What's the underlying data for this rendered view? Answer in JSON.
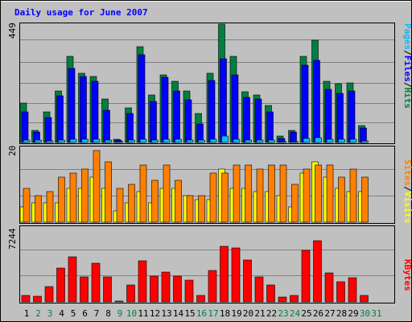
{
  "chart_data": {
    "type": "bar",
    "title": "Daily usage for June 2007",
    "days": [
      "1",
      "2",
      "3",
      "4",
      "5",
      "6",
      "7",
      "8",
      "9",
      "10",
      "11",
      "12",
      "13",
      "14",
      "15",
      "16",
      "17",
      "18",
      "19",
      "20",
      "21",
      "22",
      "23",
      "24",
      "25",
      "26",
      "27",
      "28",
      "29",
      "30",
      "31"
    ],
    "weekend_days": [
      "2",
      "3",
      "9",
      "10",
      "16",
      "17",
      "23",
      "24",
      "30",
      "31"
    ],
    "panels": [
      {
        "id": "hits",
        "max_label": "449",
        "ylim": [
          0,
          449
        ],
        "legend": [
          {
            "name": "Hits",
            "color": "#008040"
          },
          {
            "name": "Files",
            "color": "#0000ff"
          },
          {
            "name": "Pages",
            "color": "#00c0ff"
          }
        ],
        "series": [
          {
            "name": "Hits",
            "color": "#008040",
            "values": [
              150,
              45,
              115,
              195,
              325,
              260,
              250,
              165,
              12,
              130,
              360,
              180,
              255,
              230,
              195,
              110,
              262,
              445,
              325,
              190,
              180,
              140,
              25,
              45,
              325,
              385,
              230,
              220,
              225,
              65,
              0
            ]
          },
          {
            "name": "Files",
            "color": "#0000ff",
            "values": [
              115,
              40,
              95,
              175,
              280,
              250,
              230,
              120,
              8,
              110,
              330,
              155,
              245,
              195,
              160,
              70,
              235,
              315,
              255,
              170,
              165,
              115,
              15,
              40,
              290,
              310,
              200,
              185,
              195,
              55,
              0
            ]
          },
          {
            "name": "Pages",
            "color": "#00c0ff",
            "values": [
              8,
              8,
              7,
              10,
              13,
              12,
              12,
              8,
              2,
              8,
              13,
              10,
              12,
              12,
              10,
              8,
              12,
              25,
              12,
              10,
              10,
              8,
              3,
              3,
              14,
              17,
              12,
              11,
              12,
              5,
              0
            ]
          }
        ]
      },
      {
        "id": "visits",
        "max_label": "20",
        "ylim": [
          0,
          20
        ],
        "legend": [
          {
            "name": "Visits",
            "color": "#ffff00"
          },
          {
            "name": "Sites",
            "color": "#ff8000"
          }
        ],
        "series": [
          {
            "name": "Visits",
            "color": "#ffff00",
            "values": [
              4,
              5,
              5,
              5,
              9,
              9,
              12,
              9,
              3,
              5,
              8,
              5,
              9,
              9,
              7,
              6,
              6,
              14,
              9,
              9,
              8,
              8,
              7,
              4,
              13,
              16,
              12,
              9,
              8,
              8,
              0
            ]
          },
          {
            "name": "Sites",
            "color": "#ff8000",
            "values": [
              9,
              7,
              8,
              12,
              13,
              14,
              19,
              16,
              9,
              10,
              15,
              11,
              15,
              11,
              7,
              7,
              13,
              13,
              15,
              15,
              14,
              15,
              15,
              10,
              14,
              15,
              15,
              12,
              14,
              12,
              0
            ]
          }
        ]
      },
      {
        "id": "kbytes",
        "max_label": "7244",
        "ylim": [
          0,
          7244
        ],
        "legend": [
          {
            "name": "KBytes",
            "color": "#ff0000"
          }
        ],
        "series": [
          {
            "name": "KBytes",
            "color": "#ff0000",
            "values": [
              650,
              550,
              1500,
              3200,
              4300,
              2400,
              3700,
              2400,
              50,
              1600,
              3960,
              2500,
              2850,
              2450,
              2100,
              650,
              3000,
              5350,
              5160,
              4000,
              2400,
              1600,
              450,
              600,
              4900,
              5850,
              2800,
              1930,
              2300,
              610,
              0
            ]
          }
        ]
      }
    ]
  }
}
